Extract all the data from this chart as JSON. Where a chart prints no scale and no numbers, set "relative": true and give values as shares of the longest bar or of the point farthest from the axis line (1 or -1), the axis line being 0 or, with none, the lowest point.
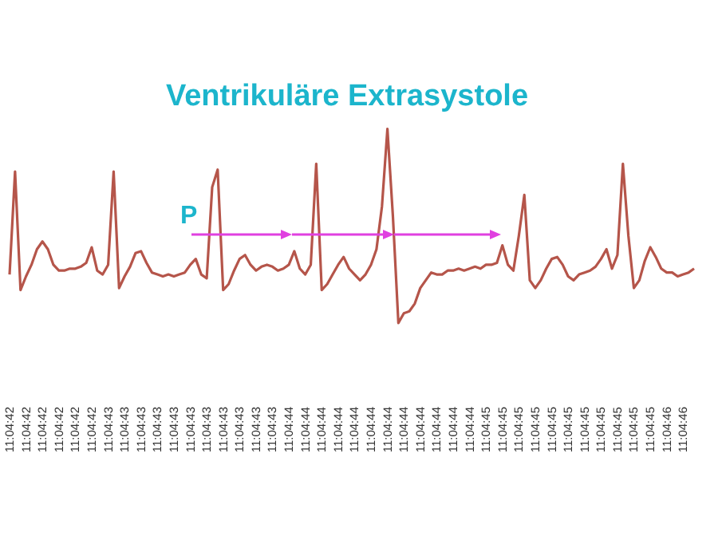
{
  "chart_data": {
    "type": "line",
    "title": "Ventrikuläre Extrasystole",
    "relative": true,
    "marker": "none",
    "annotations": [
      "P"
    ],
    "categories": [
      "11:04:42",
      null,
      null,
      "11:04:42",
      null,
      null,
      "11:04:42",
      null,
      null,
      "11:04:42",
      null,
      null,
      "11:04:42",
      null,
      null,
      "11:04:42",
      null,
      null,
      "11:04:43",
      null,
      null,
      "11:04:43",
      null,
      null,
      "11:04:43",
      null,
      null,
      "11:04:43",
      null,
      null,
      "11:04:43",
      null,
      null,
      "11:04:43",
      null,
      null,
      "11:04:43",
      null,
      null,
      "11:04:43",
      null,
      null,
      "11:04:43",
      null,
      null,
      "11:04:43",
      null,
      null,
      "11:04:43",
      null,
      null,
      "11:04:44",
      null,
      null,
      "11:04:44",
      null,
      null,
      "11:04:44",
      null,
      null,
      "11:04:44",
      null,
      null,
      "11:04:44",
      null,
      null,
      "11:04:44",
      null,
      null,
      "11:04:44",
      null,
      null,
      "11:04:44",
      null,
      null,
      "11:04:44",
      null,
      null,
      "11:04:44",
      null,
      null,
      "11:04:44",
      null,
      null,
      "11:04:44",
      null,
      null,
      "11:04:45",
      null,
      null,
      "11:04:45",
      null,
      null,
      "11:04:45",
      null,
      null,
      "11:04:45",
      null,
      null,
      "11:04:45",
      null,
      null,
      "11:04:45",
      null,
      null,
      "11:04:45",
      null,
      null,
      "11:04:45",
      null,
      null,
      "11:04:45",
      null,
      null,
      "11:04:45",
      null,
      null,
      "11:04:45",
      null,
      null,
      "11:04:46",
      null,
      null,
      "11:04:46",
      null,
      null
    ],
    "series": [
      {
        "color": "#b5554a",
        "values": [
          0.25,
          0.78,
          0.17,
          0.24,
          0.3,
          0.38,
          0.42,
          0.38,
          0.3,
          0.27,
          0.27,
          0.28,
          0.28,
          0.29,
          0.31,
          0.39,
          0.27,
          0.25,
          0.3,
          0.78,
          0.18,
          0.24,
          0.29,
          0.36,
          0.37,
          0.31,
          0.26,
          0.25,
          0.24,
          0.25,
          0.24,
          0.25,
          0.26,
          0.3,
          0.33,
          0.25,
          0.23,
          0.7,
          0.79,
          0.17,
          0.2,
          0.27,
          0.33,
          0.35,
          0.3,
          0.27,
          0.29,
          0.3,
          0.29,
          0.27,
          0.28,
          0.3,
          0.37,
          0.28,
          0.25,
          0.3,
          0.82,
          0.17,
          0.2,
          0.25,
          0.3,
          0.34,
          0.28,
          0.25,
          0.22,
          0.25,
          0.3,
          0.38,
          0.6,
          1.0,
          0.55,
          0.0,
          0.05,
          0.06,
          0.1,
          0.18,
          0.22,
          0.26,
          0.25,
          0.25,
          0.27,
          0.27,
          0.28,
          0.27,
          0.28,
          0.29,
          0.28,
          0.3,
          0.3,
          0.31,
          0.4,
          0.3,
          0.27,
          0.45,
          0.66,
          0.22,
          0.18,
          0.22,
          0.28,
          0.33,
          0.34,
          0.3,
          0.24,
          0.22,
          0.25,
          0.26,
          0.27,
          0.29,
          0.33,
          0.38,
          0.28,
          0.35,
          0.82,
          0.45,
          0.18,
          0.22,
          0.32,
          0.39,
          0.34,
          0.28,
          0.26,
          0.26,
          0.24,
          0.25,
          0.26,
          0.28
        ]
      }
    ]
  }
}
